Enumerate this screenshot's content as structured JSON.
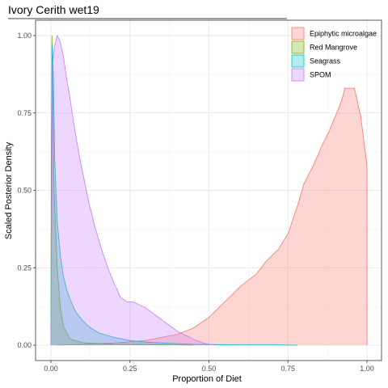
{
  "chart_data": {
    "type": "area",
    "title": "Ivory Cerith wet19",
    "xlabel": "Proportion of Diet",
    "ylabel": "Scaled Posterior Density",
    "xlim": [
      0,
      1
    ],
    "ylim": [
      0,
      1
    ],
    "x_ticks": [
      "0.00",
      "0.25",
      "0.50",
      "0.75",
      "1.00"
    ],
    "y_ticks": [
      "0.00",
      "0.25",
      "0.50",
      "0.75",
      "1.00"
    ],
    "grid": true,
    "legend_position": "top-right",
    "series": [
      {
        "name": "Epiphytic microalgae",
        "fill": "#F8766D",
        "stroke": "#F8766D",
        "points": [
          [
            0.02,
            0
          ],
          [
            0.1,
            0.003
          ],
          [
            0.2,
            0.007
          ],
          [
            0.3,
            0.015
          ],
          [
            0.35,
            0.025
          ],
          [
            0.4,
            0.035
          ],
          [
            0.45,
            0.055
          ],
          [
            0.5,
            0.09
          ],
          [
            0.55,
            0.14
          ],
          [
            0.6,
            0.19
          ],
          [
            0.65,
            0.23
          ],
          [
            0.68,
            0.27
          ],
          [
            0.72,
            0.31
          ],
          [
            0.75,
            0.36
          ],
          [
            0.78,
            0.45
          ],
          [
            0.8,
            0.52
          ],
          [
            0.83,
            0.58
          ],
          [
            0.86,
            0.65
          ],
          [
            0.88,
            0.69
          ],
          [
            0.9,
            0.74
          ],
          [
            0.92,
            0.79
          ],
          [
            0.93,
            0.83
          ],
          [
            0.96,
            0.83
          ],
          [
            0.98,
            0.74
          ],
          [
            1.0,
            0.58
          ],
          [
            1.0,
            0
          ]
        ]
      },
      {
        "name": "Red Mangrove",
        "fill": "#7CAE00",
        "stroke": "#7CAE00",
        "points": [
          [
            0.0,
            0
          ],
          [
            0.001,
            0.5
          ],
          [
            0.003,
            1.0
          ],
          [
            0.006,
            0.85
          ],
          [
            0.01,
            0.5
          ],
          [
            0.02,
            0.25
          ],
          [
            0.03,
            0.12
          ],
          [
            0.04,
            0.06
          ],
          [
            0.06,
            0.02
          ],
          [
            0.1,
            0.008
          ],
          [
            0.2,
            0.003
          ],
          [
            0.3,
            0.002
          ],
          [
            0.4,
            0.001
          ],
          [
            0.45,
            0
          ]
        ]
      },
      {
        "name": "Seagrass",
        "fill": "#00BFC4",
        "stroke": "#00BFC4",
        "points": [
          [
            0.0,
            0
          ],
          [
            0.002,
            0.7
          ],
          [
            0.004,
            0.97
          ],
          [
            0.008,
            0.86
          ],
          [
            0.012,
            0.6
          ],
          [
            0.02,
            0.4
          ],
          [
            0.03,
            0.29
          ],
          [
            0.04,
            0.22
          ],
          [
            0.05,
            0.18
          ],
          [
            0.06,
            0.15
          ],
          [
            0.07,
            0.125
          ],
          [
            0.08,
            0.105
          ],
          [
            0.1,
            0.08
          ],
          [
            0.12,
            0.06
          ],
          [
            0.15,
            0.04
          ],
          [
            0.2,
            0.025
          ],
          [
            0.25,
            0.015
          ],
          [
            0.3,
            0.01
          ],
          [
            0.35,
            0.007
          ],
          [
            0.4,
            0.005
          ],
          [
            0.45,
            0.003
          ],
          [
            0.5,
            0.002
          ],
          [
            0.6,
            0.001
          ],
          [
            0.7,
            0.001
          ],
          [
            0.78,
            0
          ]
        ]
      },
      {
        "name": "SPOM",
        "fill": "#C77CFF",
        "stroke": "#C77CFF",
        "points": [
          [
            0.0,
            0
          ],
          [
            0.005,
            0.9
          ],
          [
            0.01,
            0.96
          ],
          [
            0.02,
            1.0
          ],
          [
            0.03,
            0.98
          ],
          [
            0.04,
            0.93
          ],
          [
            0.05,
            0.86
          ],
          [
            0.06,
            0.8
          ],
          [
            0.07,
            0.73
          ],
          [
            0.08,
            0.67
          ],
          [
            0.09,
            0.61
          ],
          [
            0.1,
            0.56
          ],
          [
            0.12,
            0.46
          ],
          [
            0.14,
            0.38
          ],
          [
            0.16,
            0.31
          ],
          [
            0.18,
            0.25
          ],
          [
            0.2,
            0.2
          ],
          [
            0.22,
            0.155
          ],
          [
            0.24,
            0.14
          ],
          [
            0.26,
            0.14
          ],
          [
            0.28,
            0.13
          ],
          [
            0.3,
            0.12
          ],
          [
            0.32,
            0.105
          ],
          [
            0.34,
            0.09
          ],
          [
            0.36,
            0.075
          ],
          [
            0.38,
            0.06
          ],
          [
            0.4,
            0.045
          ],
          [
            0.42,
            0.035
          ],
          [
            0.44,
            0.025
          ],
          [
            0.46,
            0.015
          ],
          [
            0.48,
            0.008
          ],
          [
            0.5,
            0.003
          ],
          [
            0.52,
            0
          ]
        ]
      }
    ]
  }
}
